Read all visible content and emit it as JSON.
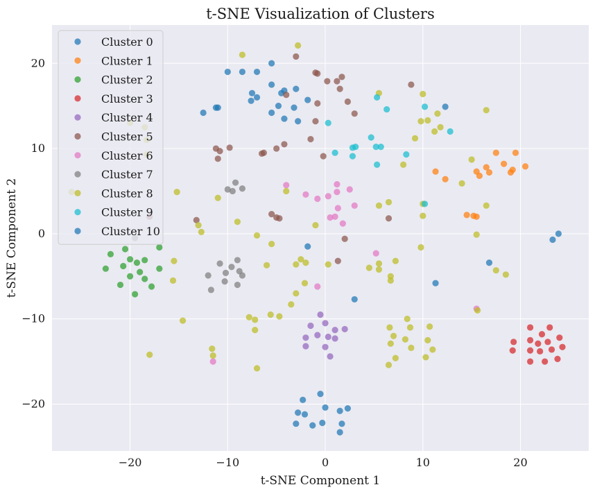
{
  "chart_data": {
    "type": "scatter",
    "title": "t-SNE Visualization of Clusters",
    "xlabel": "t-SNE Component 1",
    "ylabel": "t-SNE Component 2",
    "xlim": [
      -28,
      27
    ],
    "ylim": [
      -25.5,
      24.5
    ],
    "xticks": [
      -20,
      -10,
      0,
      10,
      20
    ],
    "yticks": [
      -20,
      -10,
      0,
      10,
      20
    ],
    "grid": true,
    "legend_position": "top-left",
    "background": "#eaeaf2",
    "series": [
      {
        "name": "Cluster 0",
        "color": "#1f77b4",
        "points": [
          [
            -10,
            19
          ],
          [
            -8.5,
            19
          ],
          [
            -7,
            19
          ],
          [
            -5.5,
            20
          ],
          [
            -7.5,
            16.5
          ],
          [
            -7,
            16
          ],
          [
            -5.5,
            17.5
          ],
          [
            -4.5,
            16.5
          ],
          [
            -4.2,
            16.8
          ],
          [
            -3,
            17
          ],
          [
            -7.6,
            15.6
          ],
          [
            -4.8,
            15
          ],
          [
            -3.2,
            14.8
          ],
          [
            -1.8,
            15.7
          ],
          [
            -5.5,
            14.2
          ],
          [
            -4.2,
            13.5
          ],
          [
            -2.8,
            13.2
          ],
          [
            -11,
            14.8
          ],
          [
            -12.5,
            14.2
          ]
        ]
      },
      {
        "name": "Cluster 1",
        "color": "#ff7f0e",
        "points": [
          [
            17.5,
            9.5
          ],
          [
            19.5,
            9.5
          ],
          [
            20.5,
            7.9
          ],
          [
            18.3,
            8.2
          ],
          [
            16.5,
            7.8
          ],
          [
            19.2,
            7.5
          ],
          [
            15.5,
            7.3
          ],
          [
            16.8,
            7.2
          ],
          [
            19,
            7.2
          ],
          [
            11.3,
            7.3
          ],
          [
            15.8,
            6.8
          ],
          [
            12.3,
            6.4
          ],
          [
            14.5,
            2.2
          ],
          [
            15.2,
            2.1
          ],
          [
            15.5,
            2
          ]
        ]
      },
      {
        "name": "Cluster 2",
        "color": "#2ca02c",
        "points": [
          [
            -20.5,
            -1.8
          ],
          [
            -17,
            -1.6
          ],
          [
            -22,
            -2.4
          ],
          [
            -20,
            -3
          ],
          [
            -18.5,
            -3.1
          ],
          [
            -19.3,
            -3.4
          ],
          [
            -20.7,
            -3.8
          ],
          [
            -22.5,
            -4.1
          ],
          [
            -17,
            -4.1
          ],
          [
            -19,
            -4.5
          ],
          [
            -20,
            -5
          ],
          [
            -18.5,
            -5.3
          ],
          [
            -21,
            -6
          ],
          [
            -17.8,
            -6.2
          ],
          [
            -19.5,
            -7.1
          ]
        ]
      },
      {
        "name": "Cluster 3",
        "color": "#d62728",
        "points": [
          [
            21,
            -11
          ],
          [
            23,
            -11
          ],
          [
            22.2,
            -11.8
          ],
          [
            24,
            -12.2
          ],
          [
            21,
            -12.5
          ],
          [
            22.8,
            -12.7
          ],
          [
            21.8,
            -12.9
          ],
          [
            19.3,
            -12.7
          ],
          [
            24.3,
            -13.3
          ],
          [
            19.2,
            -13.7
          ],
          [
            21,
            -13.7
          ],
          [
            22,
            -13.8
          ],
          [
            23.2,
            -13.6
          ],
          [
            23.8,
            -14.7
          ],
          [
            21,
            -15
          ],
          [
            22.5,
            -15
          ]
        ]
      },
      {
        "name": "Cluster 4",
        "color": "#9467bd",
        "points": [
          [
            -0.5,
            -9.5
          ],
          [
            0,
            -10.5
          ],
          [
            -1.5,
            -10.8
          ],
          [
            1,
            -11.3
          ],
          [
            2,
            -11.2
          ],
          [
            -0.8,
            -11.9
          ],
          [
            0.3,
            -12.1
          ],
          [
            1,
            -12.3
          ],
          [
            -2,
            -12.2
          ],
          [
            -2,
            -13.2
          ],
          [
            0,
            -13.3
          ],
          [
            0.5,
            -14.4
          ]
        ]
      },
      {
        "name": "Cluster 5",
        "color": "#8c564b",
        "points": [
          [
            -3,
            20.8
          ],
          [
            -1,
            18.9
          ],
          [
            -0.8,
            18.8
          ],
          [
            1.7,
            18.4
          ],
          [
            0.2,
            17.9
          ],
          [
            1.2,
            17.9
          ],
          [
            1.5,
            17
          ],
          [
            -4,
            16.3
          ],
          [
            2.3,
            15.5
          ],
          [
            -0.8,
            15.3
          ],
          [
            3,
            14.1
          ],
          [
            -1,
            13.2
          ],
          [
            -1.5,
            11.1
          ],
          [
            -4.2,
            10.5
          ],
          [
            -9.8,
            10.1
          ],
          [
            -11.2,
            10
          ],
          [
            -10.8,
            9.7
          ],
          [
            -5,
            10
          ],
          [
            -6.3,
            9.5
          ],
          [
            -6.5,
            9.4
          ],
          [
            -0.2,
            9.1
          ],
          [
            -11,
            8.8
          ],
          [
            -5.5,
            2.3
          ],
          [
            -5,
            1.9
          ],
          [
            -4.7,
            1.8
          ],
          [
            -13.2,
            1.6
          ],
          [
            6.5,
            1.8
          ],
          [
            2,
            -0.6
          ],
          [
            1.3,
            -3.2
          ],
          [
            8.8,
            17.5
          ],
          [
            -18,
            2
          ]
        ]
      },
      {
        "name": "Cluster 6",
        "color": "#e377c2",
        "points": [
          [
            1.2,
            5.8
          ],
          [
            -4,
            5.7
          ],
          [
            2.5,
            5.2
          ],
          [
            1.2,
            4.9
          ],
          [
            -2,
            4.6
          ],
          [
            0.3,
            4.4
          ],
          [
            -0.8,
            4.1
          ],
          [
            3,
            3.3
          ],
          [
            1.3,
            3
          ],
          [
            0.5,
            1.9
          ],
          [
            1,
            2
          ],
          [
            1.8,
            1.2
          ],
          [
            5.2,
            -2.3
          ],
          [
            -0.8,
            -6.2
          ],
          [
            15.5,
            -8.8
          ],
          [
            -11.5,
            -15
          ]
        ]
      },
      {
        "name": "Cluster 7",
        "color": "#7f7f7f",
        "points": [
          [
            -9.2,
            6
          ],
          [
            -8.5,
            5.3
          ],
          [
            -10,
            5.2
          ],
          [
            -9.5,
            5
          ],
          [
            -19.5,
            -0.5
          ],
          [
            -10.8,
            -3.5
          ],
          [
            -9,
            -3.1
          ],
          [
            -9.6,
            -3.9
          ],
          [
            -8.8,
            -4.4
          ],
          [
            -10.2,
            -4.6
          ],
          [
            -12,
            -4.9
          ],
          [
            -8.5,
            -4.9
          ],
          [
            -10.3,
            -5.6
          ],
          [
            -9,
            -6
          ],
          [
            -11.7,
            -6.6
          ]
        ]
      },
      {
        "name": "Cluster 8",
        "color": "#bcbd22",
        "points": [
          [
            -2.8,
            22.1
          ],
          [
            -8.5,
            21
          ],
          [
            16.5,
            14.5
          ],
          [
            5.5,
            16.5
          ],
          [
            10,
            16.4
          ],
          [
            -20,
            13
          ],
          [
            -18.5,
            12.5
          ],
          [
            -18.3,
            11
          ],
          [
            9.8,
            13.2
          ],
          [
            10.5,
            13.3
          ],
          [
            11.5,
            14.1
          ],
          [
            11.8,
            12.5
          ],
          [
            9.2,
            11.2
          ],
          [
            11.2,
            12
          ],
          [
            15,
            8.7
          ],
          [
            8,
            8.1
          ],
          [
            -18.3,
            9.3
          ],
          [
            14,
            5.9
          ],
          [
            -26,
            4.9
          ],
          [
            -15.2,
            4.9
          ],
          [
            -4,
            5
          ],
          [
            10,
            3.5
          ],
          [
            6.5,
            3.7
          ],
          [
            16.5,
            3.3
          ],
          [
            5.5,
            3.3
          ],
          [
            -11,
            4.2
          ],
          [
            -13,
            1
          ],
          [
            -9,
            1.4
          ],
          [
            -12.7,
            0.2
          ],
          [
            -7,
            -0.2
          ],
          [
            -1,
            1
          ],
          [
            10,
            2.1
          ],
          [
            15.5,
            -0.1
          ],
          [
            -5.5,
            -1.2
          ],
          [
            9.8,
            -1.6
          ],
          [
            -15.5,
            -3.2
          ],
          [
            -6,
            -3.7
          ],
          [
            -2.5,
            -3
          ],
          [
            -3,
            -3.6
          ],
          [
            -2,
            -3.4
          ],
          [
            0.3,
            -3.6
          ],
          [
            5.5,
            -3.5
          ],
          [
            7.2,
            -3.2
          ],
          [
            4.5,
            -4
          ],
          [
            5.5,
            -4.2
          ],
          [
            17.5,
            -4.3
          ],
          [
            18.5,
            -4.8
          ],
          [
            6.7,
            -5
          ],
          [
            6.7,
            -5.5
          ],
          [
            -15.6,
            -5.5
          ],
          [
            -2.1,
            -5.8
          ],
          [
            -3,
            -7
          ],
          [
            -3.5,
            -8.3
          ],
          [
            15.6,
            -9
          ],
          [
            -5.6,
            -9.5
          ],
          [
            -4.7,
            -9.7
          ],
          [
            -7.8,
            -9.8
          ],
          [
            -7.2,
            -10.1
          ],
          [
            8.4,
            -10
          ],
          [
            -14.6,
            -10.2
          ],
          [
            6.6,
            -11
          ],
          [
            10.7,
            -10.9
          ],
          [
            8.7,
            -11
          ],
          [
            -7.2,
            -11.3
          ],
          [
            7,
            -12
          ],
          [
            8.2,
            -12.4
          ],
          [
            10.5,
            -12.5
          ],
          [
            6.7,
            -12.9
          ],
          [
            -11.6,
            -13.5
          ],
          [
            8.8,
            -13.4
          ],
          [
            11,
            -13.6
          ],
          [
            -11.5,
            -14.3
          ],
          [
            -18,
            -14.2
          ],
          [
            7.2,
            -14.6
          ],
          [
            10.3,
            -14.5
          ],
          [
            6.5,
            -15.4
          ],
          [
            -7,
            -15.8
          ]
        ]
      },
      {
        "name": "Cluster 9",
        "color": "#17becf",
        "points": [
          [
            5.3,
            16
          ],
          [
            10.2,
            14.9
          ],
          [
            6.3,
            14.6
          ],
          [
            12.8,
            12
          ],
          [
            0.3,
            13
          ],
          [
            4.7,
            11.3
          ],
          [
            2.8,
            10.1
          ],
          [
            3.1,
            10.2
          ],
          [
            5.2,
            10.2
          ],
          [
            5.7,
            10.2
          ],
          [
            1,
            9.5
          ],
          [
            2.8,
            9.1
          ],
          [
            8.3,
            9.3
          ],
          [
            5.3,
            8.1
          ],
          [
            10.2,
            3.5
          ]
        ]
      },
      {
        "name": "Cluster 10",
        "color": "#1f77b4",
        "points": [
          [
            0,
            -20.4
          ],
          [
            -0.5,
            -18.8
          ],
          [
            -2.3,
            -19.5
          ],
          [
            2.3,
            -20.5
          ],
          [
            1.5,
            -20.8
          ],
          [
            -2.8,
            -21
          ],
          [
            -2.1,
            -21.2
          ],
          [
            -0.3,
            -22.2
          ],
          [
            -3,
            -22.3
          ],
          [
            -1.3,
            -22.5
          ],
          [
            1.7,
            -22.3
          ],
          [
            1.5,
            -23.3
          ],
          [
            23.9,
            0
          ],
          [
            23.3,
            -0.7
          ],
          [
            -1.8,
            -1.5
          ],
          [
            16.8,
            -3.4
          ],
          [
            11.3,
            -5.8
          ],
          [
            3,
            -7.7
          ],
          [
            12.3,
            14.9
          ],
          [
            -11.2,
            14.8
          ]
        ]
      }
    ]
  }
}
